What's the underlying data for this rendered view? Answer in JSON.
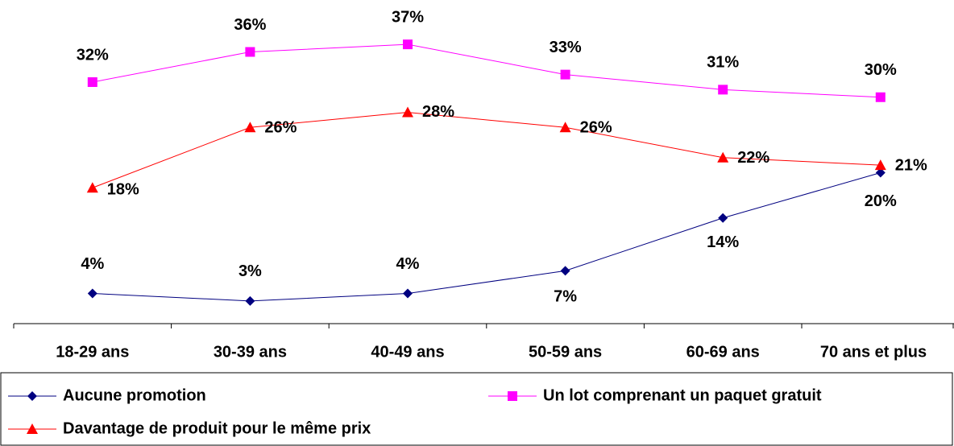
{
  "chart_data": {
    "type": "line",
    "categories": [
      "18-29 ans",
      "30-39 ans",
      "40-49 ans",
      "50-59 ans",
      "60-69 ans",
      "70 ans et plus"
    ],
    "series": [
      {
        "name": "Aucune promotion",
        "color": "#000080",
        "marker": "diamond",
        "values": [
          4,
          3,
          4,
          7,
          14,
          20
        ],
        "value_labels": [
          "4%",
          "3%",
          "4%",
          "7%",
          "14%",
          "20%"
        ]
      },
      {
        "name": "Un lot comprenant un paquet gratuit",
        "color": "#ff00ff",
        "marker": "square",
        "values": [
          32,
          36,
          37,
          33,
          31,
          30
        ],
        "value_labels": [
          "32%",
          "36%",
          "37%",
          "33%",
          "31%",
          "30%"
        ]
      },
      {
        "name": "Davantage de produit pour le même prix",
        "color": "#ff0000",
        "marker": "triangle",
        "values": [
          18,
          26,
          28,
          26,
          22,
          21
        ],
        "value_labels": [
          "18%",
          "26%",
          "28%",
          "26%",
          "22%",
          "21%"
        ]
      }
    ],
    "ylim": [
      0,
      40
    ],
    "grid": false
  }
}
